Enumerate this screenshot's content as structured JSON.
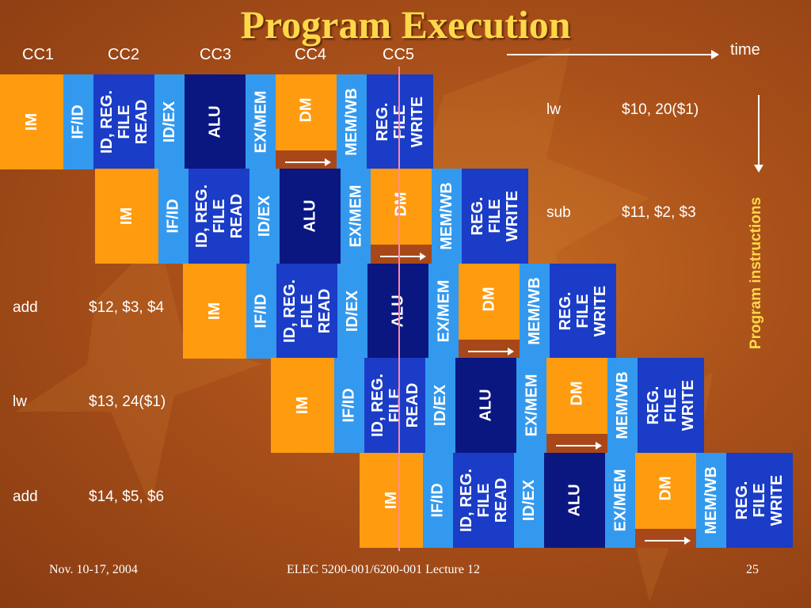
{
  "slide": {
    "title": "Program Execution",
    "cycles": [
      "CC1",
      "CC2",
      "CC3",
      "CC4",
      "CC5"
    ],
    "time_label": "time",
    "axis_label": "Program instructions",
    "stages": {
      "im": "IM",
      "ifid": "IF/ID",
      "idreg": "ID, REG.\nFILE\nREAD",
      "idex": "ID/EX",
      "alu": "ALU",
      "exmem": "EX/MEM",
      "dm": "DM",
      "memwb": "MEM/WB",
      "wb": "REG.\nFILE\nWRITE"
    },
    "instructions": [
      {
        "op": "lw",
        "args": "$10, 20($1)"
      },
      {
        "op": "sub",
        "args": "$11, $2, $3"
      },
      {
        "op": "add",
        "args": "$12, $3, $4"
      },
      {
        "op": "lw",
        "args": "$13, 24($1)"
      },
      {
        "op": "add",
        "args": "$14, $5, $6"
      }
    ],
    "footer": {
      "date": "Nov. 10-17, 2004",
      "course": "ELEC 5200-001/6200-001 Lecture 12",
      "page": "25"
    }
  }
}
